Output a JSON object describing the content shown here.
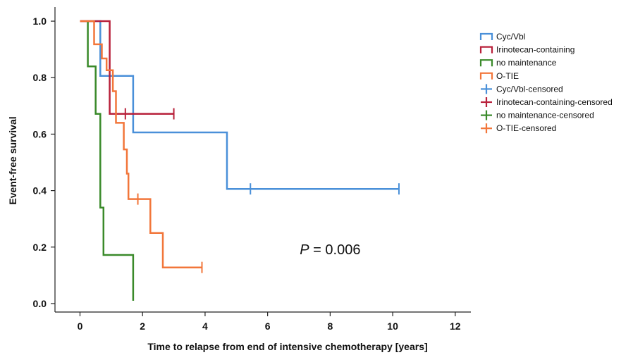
{
  "chart_data": {
    "type": "line",
    "subtype": "kaplan-meier-step",
    "xlabel": "Time to relapse from end of intensive chemotherapy [years]",
    "ylabel": "Event-free survival",
    "xlim": [
      -0.8,
      12.5
    ],
    "ylim": [
      -0.03,
      1.05
    ],
    "x_ticks": [
      "0",
      "2",
      "4",
      "6",
      "8",
      "10",
      "12"
    ],
    "y_ticks": [
      "0.0",
      "0.2",
      "0.4",
      "0.6",
      "0.8",
      "1.0"
    ],
    "grid": false,
    "legend_position": "top-right",
    "annotation": {
      "italic": "P",
      "rest": " = 0.006",
      "x": 8.0,
      "y": 0.175
    },
    "legend": [
      "Cyc/Vbl",
      "Irinotecan-containing",
      "no maintenance",
      "O-TIE",
      "Cyc/Vbl-censored",
      "Irinotecan-containing-censored",
      "no maintenance-censored",
      "O-TIE-censored"
    ],
    "series": [
      {
        "name": "Cyc/Vbl",
        "color": "#4a90d9",
        "x": [
          0,
          0.65,
          0.65,
          1.7,
          1.7,
          4.7,
          4.7,
          10.2
        ],
        "y": [
          1.0,
          1.0,
          0.806,
          0.806,
          0.606,
          0.606,
          0.406,
          0.406
        ],
        "censored": [
          {
            "x": 5.45,
            "y": 0.406
          },
          {
            "x": 10.2,
            "y": 0.406
          }
        ]
      },
      {
        "name": "Irinotecan-containing",
        "color": "#b8203a",
        "x": [
          0,
          0.95,
          0.95,
          3.0
        ],
        "y": [
          1.0,
          1.0,
          0.672,
          0.672
        ],
        "censored": [
          {
            "x": 1.45,
            "y": 0.672
          },
          {
            "x": 3.0,
            "y": 0.672
          }
        ]
      },
      {
        "name": "no maintenance",
        "color": "#3a8a2a",
        "x": [
          0.25,
          0.25,
          0.5,
          0.5,
          0.65,
          0.65,
          0.75,
          0.75,
          1.7,
          1.7
        ],
        "y": [
          1.0,
          0.84,
          0.84,
          0.672,
          0.672,
          0.34,
          0.34,
          0.172,
          0.172,
          0.01
        ],
        "censored": []
      },
      {
        "name": "O-TIE",
        "color": "#f2763a",
        "x": [
          0,
          0.45,
          0.45,
          0.7,
          0.7,
          0.85,
          0.85,
          1.05,
          1.05,
          1.15,
          1.15,
          1.4,
          1.4,
          1.5,
          1.5,
          1.55,
          1.55,
          2.25,
          2.25,
          2.65,
          2.65,
          3.9
        ],
        "y": [
          1.0,
          1.0,
          0.918,
          0.918,
          0.868,
          0.868,
          0.826,
          0.826,
          0.752,
          0.752,
          0.64,
          0.64,
          0.546,
          0.546,
          0.46,
          0.46,
          0.37,
          0.37,
          0.25,
          0.25,
          0.128,
          0.128
        ],
        "censored": [
          {
            "x": 1.85,
            "y": 0.37
          },
          {
            "x": 3.9,
            "y": 0.128
          }
        ]
      }
    ]
  }
}
